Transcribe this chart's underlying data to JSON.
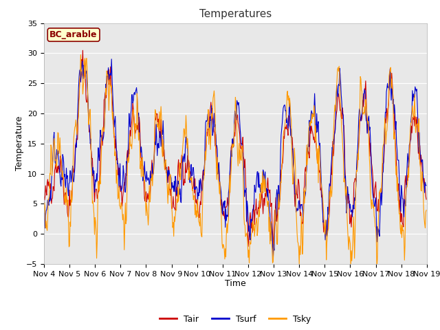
{
  "title": "Temperatures",
  "xlabel": "Time",
  "ylabel": "Temperature",
  "ylim": [
    -5,
    35
  ],
  "xlim_start": 0,
  "x_tick_labels": [
    "Nov 4",
    "Nov 5",
    "Nov 6",
    "Nov 7",
    "Nov 8",
    "Nov 9",
    "Nov 10",
    "Nov 11",
    "Nov 12",
    "Nov 13",
    "Nov 14",
    "Nov 15",
    "Nov 16",
    "Nov 17",
    "Nov 18",
    "Nov 19"
  ],
  "legend_label": "BC_arable",
  "line_colors": {
    "Tair": "#cc0000",
    "Tsurf": "#0000cc",
    "Tsky": "#ff9900"
  },
  "line_width": 0.8,
  "bg_color": "#e8e8e8",
  "fig_bg_color": "#ffffff",
  "title_fontsize": 11,
  "axis_fontsize": 9,
  "tick_fontsize": 8,
  "legend_fontsize": 9
}
